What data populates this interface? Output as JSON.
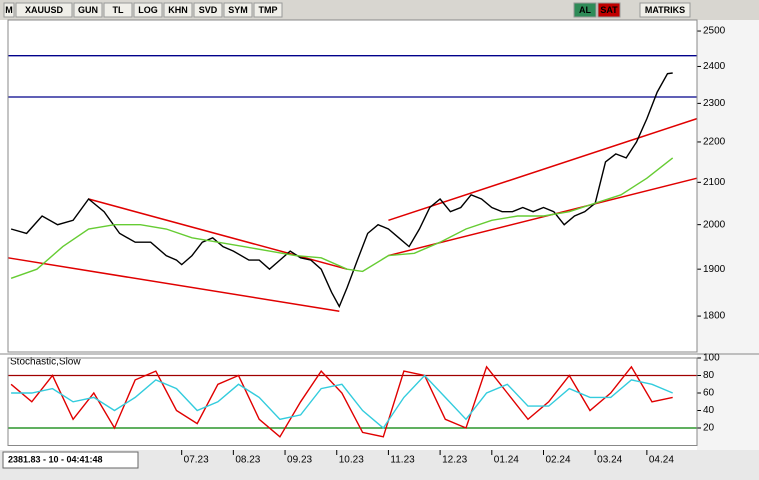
{
  "toolbar": {
    "items": [
      "M",
      "XAUUSD",
      "GUN",
      "TL",
      "LOG",
      "KHN",
      "SVD",
      "SYM",
      "TMP"
    ],
    "right": [
      "AL",
      "SAT",
      "MATRIKS"
    ]
  },
  "status": "2381.83 - 10 - 04:41:48",
  "chart_data": [
    {
      "type": "line",
      "log": true,
      "ylim": [
        1727,
        2532
      ],
      "yticks": [
        1800,
        1900,
        2000,
        2100,
        2200,
        2300,
        2400,
        2500
      ],
      "xlim": [
        3.64,
        16.97
      ],
      "xticks": [
        {
          "value": 7,
          "label": "07.23"
        },
        {
          "value": 8,
          "label": "08.23"
        },
        {
          "value": 9,
          "label": "09.23"
        },
        {
          "value": 10,
          "label": "10.23"
        },
        {
          "value": 11,
          "label": "11.23"
        },
        {
          "value": 12,
          "label": "12.23"
        },
        {
          "value": 13,
          "label": "01.24"
        },
        {
          "value": 14,
          "label": "02.24"
        },
        {
          "value": 15,
          "label": "03.24"
        },
        {
          "value": 16,
          "label": "04.24"
        }
      ],
      "series": [
        {
          "color": "#000000",
          "x": [
            3.7,
            4.0,
            4.3,
            4.6,
            4.9,
            5.2,
            5.5,
            5.8,
            6.1,
            6.4,
            6.7,
            6.9,
            7.0,
            7.2,
            7.4,
            7.6,
            7.8,
            8.0,
            8.3,
            8.5,
            8.7,
            8.9,
            9.1,
            9.3,
            9.5,
            9.7,
            9.9,
            10.05,
            10.2,
            10.4,
            10.6,
            10.8,
            11.0,
            11.2,
            11.4,
            11.6,
            11.8,
            12.0,
            12.2,
            12.4,
            12.6,
            12.8,
            13.0,
            13.2,
            13.4,
            13.6,
            13.8,
            14.0,
            14.2,
            14.4,
            14.6,
            14.8,
            15.0,
            15.2,
            15.4,
            15.6,
            15.8,
            16.0,
            16.2,
            16.4,
            16.5
          ],
          "values": [
            1990,
            1980,
            2020,
            2000,
            2010,
            2060,
            2030,
            1980,
            1960,
            1960,
            1930,
            1920,
            1910,
            1930,
            1960,
            1970,
            1950,
            1940,
            1920,
            1920,
            1900,
            1920,
            1940,
            1925,
            1920,
            1900,
            1850,
            1820,
            1860,
            1920,
            1980,
            2000,
            1990,
            1970,
            1950,
            1990,
            2040,
            2060,
            2030,
            2040,
            2070,
            2060,
            2040,
            2030,
            2030,
            2040,
            2030,
            2040,
            2030,
            2000,
            2020,
            2030,
            2050,
            2150,
            2170,
            2160,
            2200,
            2260,
            2330,
            2380,
            2382
          ]
        },
        {
          "color": "#66cc33",
          "x": [
            3.7,
            4.2,
            4.7,
            5.2,
            5.7,
            6.2,
            6.7,
            7.2,
            7.7,
            8.2,
            8.7,
            9.2,
            9.7,
            10.2,
            10.5,
            11.0,
            11.5,
            12.0,
            12.5,
            13.0,
            13.5,
            14.0,
            14.5,
            15.0,
            15.5,
            16.0,
            16.5
          ],
          "values": [
            1880,
            1900,
            1950,
            1990,
            2000,
            2000,
            1990,
            1970,
            1960,
            1950,
            1940,
            1930,
            1925,
            1900,
            1895,
            1930,
            1935,
            1960,
            1990,
            2010,
            2020,
            2020,
            2030,
            2050,
            2070,
            2110,
            2160
          ]
        }
      ],
      "trendlines": [
        {
          "color": "#e00000",
          "x": [
            5.2,
            10.2
          ],
          "values": [
            2060,
            1900
          ]
        },
        {
          "color": "#e00000",
          "x": [
            3.64,
            10.05
          ],
          "values": [
            1925,
            1810
          ]
        },
        {
          "color": "#e00000",
          "x": [
            11.0,
            16.97
          ],
          "values": [
            2010,
            2260
          ]
        },
        {
          "color": "#e00000",
          "x": [
            11.0,
            16.97
          ],
          "values": [
            1930,
            2110
          ]
        }
      ],
      "levels": [
        2430,
        2317
      ],
      "level_color": "#00008b"
    },
    {
      "type": "line",
      "title": "Stochastic,Slow",
      "ylim": [
        0,
        100
      ],
      "yticks": [
        20,
        40,
        60,
        80,
        100
      ],
      "xlim": [
        3.64,
        16.97
      ],
      "series": [
        {
          "color": "#e00000",
          "x": [
            3.7,
            4.1,
            4.5,
            4.9,
            5.3,
            5.7,
            6.1,
            6.5,
            6.9,
            7.3,
            7.7,
            8.1,
            8.5,
            8.9,
            9.3,
            9.7,
            10.1,
            10.5,
            10.9,
            11.3,
            11.7,
            12.1,
            12.5,
            12.9,
            13.3,
            13.7,
            14.1,
            14.5,
            14.9,
            15.3,
            15.7,
            16.1,
            16.5
          ],
          "values": [
            70,
            50,
            80,
            30,
            60,
            20,
            75,
            85,
            40,
            25,
            70,
            80,
            30,
            10,
            50,
            85,
            60,
            15,
            10,
            85,
            80,
            30,
            20,
            90,
            60,
            30,
            50,
            80,
            40,
            60,
            90,
            50,
            55
          ]
        },
        {
          "color": "#33ccdd",
          "x": [
            3.7,
            4.1,
            4.5,
            4.9,
            5.3,
            5.7,
            6.1,
            6.5,
            6.9,
            7.3,
            7.7,
            8.1,
            8.5,
            8.9,
            9.3,
            9.7,
            10.1,
            10.5,
            10.9,
            11.3,
            11.7,
            12.1,
            12.5,
            12.9,
            13.3,
            13.7,
            14.1,
            14.5,
            14.9,
            15.3,
            15.7,
            16.1,
            16.5
          ],
          "values": [
            60,
            60,
            65,
            50,
            55,
            40,
            55,
            75,
            65,
            40,
            50,
            70,
            55,
            30,
            35,
            65,
            70,
            40,
            20,
            55,
            80,
            55,
            30,
            60,
            70,
            45,
            45,
            65,
            55,
            55,
            75,
            70,
            60
          ]
        }
      ],
      "levels": [
        80,
        20
      ],
      "level_colors": [
        "#a00000",
        "#008000"
      ]
    }
  ]
}
